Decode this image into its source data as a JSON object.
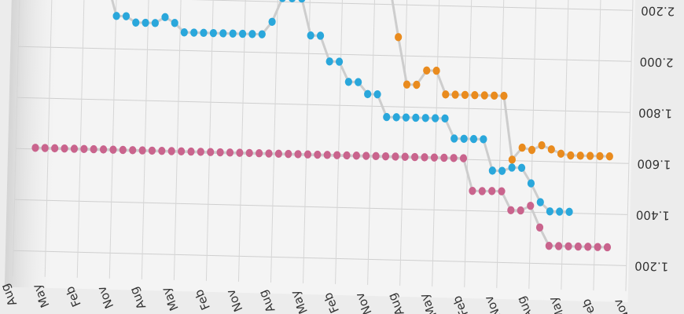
{
  "chart_data": {
    "type": "scatter",
    "mirrored": true,
    "x_ticks": [
      "Nov",
      "Feb",
      "May",
      "Aug",
      "Nov",
      "Feb",
      "May",
      "Aug",
      "Nov",
      "Feb",
      "May",
      "Aug",
      "Nov",
      "Feb",
      "May",
      "Aug",
      "Nov",
      "Feb",
      "May",
      "Aug"
    ],
    "y_ticks": [
      "1.200",
      "1.400",
      "1.600",
      "1.800",
      "2.000",
      "2.200"
    ],
    "ylim": [
      1.1,
      2.25
    ],
    "xlim": [
      0,
      63
    ],
    "grid": true,
    "series": [
      {
        "color": "#e98b1e",
        "points": [
          [
            2,
            1.626
          ],
          [
            3,
            1.626
          ],
          [
            4,
            1.626
          ],
          [
            5,
            1.626
          ],
          [
            6,
            1.626
          ],
          [
            7,
            1.632
          ],
          [
            8,
            1.648
          ],
          [
            9,
            1.663
          ],
          [
            10,
            1.644
          ],
          [
            11,
            1.652
          ],
          [
            12,
            1.604
          ],
          [
            13,
            1.853
          ],
          [
            14,
            1.853
          ],
          [
            15,
            1.853
          ],
          [
            16,
            1.853
          ],
          [
            17,
            1.853
          ],
          [
            18,
            1.853
          ],
          [
            19,
            1.853
          ],
          [
            20,
            1.945
          ],
          [
            21,
            1.945
          ],
          [
            22,
            1.888
          ],
          [
            23,
            1.888
          ],
          [
            24,
            2.073
          ],
          [
            25,
            2.275
          ],
          [
            26,
            2.275
          ],
          [
            27,
            2.275
          ],
          [
            28,
            2.275
          ],
          [
            29,
            2.275
          ],
          [
            30,
            2.275
          ],
          [
            31,
            2.275
          ],
          [
            32,
            2.275
          ],
          [
            33,
            2.275
          ],
          [
            35,
            2.275
          ],
          [
            36,
            2.275
          ],
          [
            37,
            2.241
          ],
          [
            38,
            2.275
          ],
          [
            39,
            2.275
          ],
          [
            40,
            2.275
          ],
          [
            41,
            2.275
          ],
          [
            42,
            2.275
          ],
          [
            43,
            2.275
          ],
          [
            44,
            2.275
          ],
          [
            45,
            2.275
          ],
          [
            46,
            2.275
          ],
          [
            48,
            2.275
          ],
          [
            49,
            2.275
          ],
          [
            50,
            2.275
          ],
          [
            51,
            2.275
          ],
          [
            52,
            2.275
          ],
          [
            53,
            2.275
          ],
          [
            55,
            2.275
          ],
          [
            56,
            2.275
          ],
          [
            57,
            2.275
          ],
          [
            58,
            2.275
          ]
        ]
      },
      {
        "color": "#2aa7db",
        "points": [
          [
            6,
            1.405
          ],
          [
            7,
            1.405
          ],
          [
            8,
            1.405
          ],
          [
            9,
            1.44
          ],
          [
            10,
            1.513
          ],
          [
            11,
            1.573
          ],
          [
            12,
            1.573
          ],
          [
            13,
            1.559
          ],
          [
            14,
            1.559
          ],
          [
            15,
            1.681
          ],
          [
            16,
            1.681
          ],
          [
            17,
            1.681
          ],
          [
            18,
            1.681
          ],
          [
            19,
            1.759
          ],
          [
            20,
            1.759
          ],
          [
            21,
            1.759
          ],
          [
            22,
            1.759
          ],
          [
            23,
            1.759
          ],
          [
            24,
            1.759
          ],
          [
            25,
            1.759
          ],
          [
            26,
            1.847
          ],
          [
            27,
            1.847
          ],
          [
            28,
            1.893
          ],
          [
            29,
            1.893
          ],
          [
            30,
            1.971
          ],
          [
            31,
            1.971
          ],
          [
            32,
            2.071
          ],
          [
            33,
            2.071
          ],
          [
            34,
            2.215
          ],
          [
            35,
            2.215
          ],
          [
            36,
            2.215
          ],
          [
            37,
            2.121
          ],
          [
            38,
            2.071
          ],
          [
            39,
            2.071
          ],
          [
            40,
            2.071
          ],
          [
            41,
            2.071
          ],
          [
            42,
            2.071
          ],
          [
            43,
            2.071
          ],
          [
            44,
            2.071
          ],
          [
            45,
            2.071
          ],
          [
            46,
            2.071
          ],
          [
            47,
            2.107
          ],
          [
            48,
            2.129
          ],
          [
            49,
            2.105
          ],
          [
            50,
            2.105
          ],
          [
            51,
            2.105
          ],
          [
            52,
            2.129
          ],
          [
            53,
            2.129
          ],
          [
            54,
            2.259
          ],
          [
            55,
            2.259
          ],
          [
            56,
            2.259
          ],
          [
            57,
            2.259
          ],
          [
            58,
            2.259
          ]
        ]
      },
      {
        "color": "#c9648d",
        "points": [
          [
            2,
            1.27
          ],
          [
            3,
            1.27
          ],
          [
            4,
            1.27
          ],
          [
            5,
            1.27
          ],
          [
            6,
            1.27
          ],
          [
            7,
            1.27
          ],
          [
            8,
            1.27
          ],
          [
            9,
            1.341
          ],
          [
            10,
            1.425
          ],
          [
            11,
            1.406
          ],
          [
            12,
            1.406
          ],
          [
            13,
            1.479
          ],
          [
            14,
            1.479
          ],
          [
            15,
            1.478
          ],
          [
            16,
            1.478
          ],
          [
            17,
            1.605
          ],
          [
            18,
            1.605
          ],
          [
            19,
            1.605
          ],
          [
            20,
            1.605
          ],
          [
            21,
            1.605
          ],
          [
            22,
            1.605
          ],
          [
            23,
            1.605
          ],
          [
            24,
            1.605
          ],
          [
            25,
            1.605
          ],
          [
            26,
            1.605
          ],
          [
            27,
            1.605
          ],
          [
            28,
            1.605
          ],
          [
            29,
            1.605
          ],
          [
            30,
            1.605
          ],
          [
            31,
            1.605
          ],
          [
            32,
            1.605
          ],
          [
            33,
            1.605
          ],
          [
            34,
            1.605
          ],
          [
            35,
            1.605
          ],
          [
            36,
            1.605
          ],
          [
            37,
            1.605
          ],
          [
            38,
            1.605
          ],
          [
            39,
            1.605
          ],
          [
            40,
            1.605
          ],
          [
            41,
            1.605
          ],
          [
            42,
            1.605
          ],
          [
            43,
            1.605
          ],
          [
            44,
            1.605
          ],
          [
            45,
            1.605
          ],
          [
            46,
            1.605
          ],
          [
            47,
            1.605
          ],
          [
            48,
            1.605
          ],
          [
            49,
            1.605
          ],
          [
            50,
            1.605
          ],
          [
            51,
            1.605
          ],
          [
            52,
            1.605
          ],
          [
            53,
            1.605
          ],
          [
            54,
            1.605
          ],
          [
            55,
            1.605
          ],
          [
            56,
            1.605
          ],
          [
            57,
            1.605
          ],
          [
            58,
            1.605
          ],
          [
            59,
            1.605
          ],
          [
            60,
            1.605
          ],
          [
            61,
            1.605
          ]
        ]
      }
    ]
  }
}
